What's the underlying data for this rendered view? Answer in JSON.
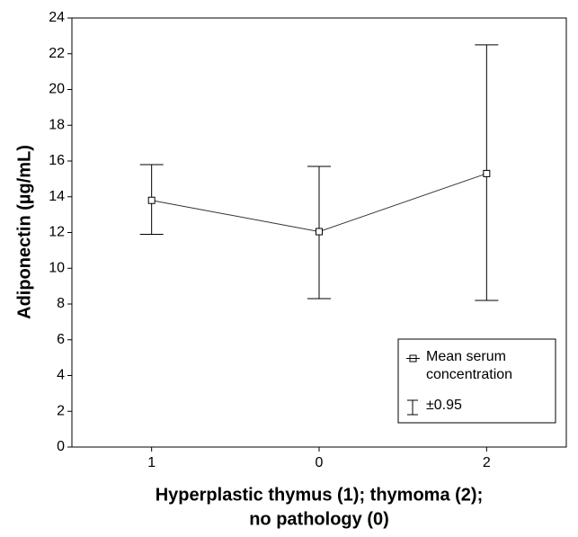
{
  "chart_data": {
    "type": "line",
    "x_label": [
      "Hyperplastic thymus (1); thymoma (2);",
      "no pathology (0)"
    ],
    "y_label": "Adiponectin (µg/mL)",
    "categories": [
      "1",
      "0",
      "2"
    ],
    "series": [
      {
        "name": "Mean serum concentration",
        "color": "#333333",
        "values": [
          13.8,
          12.05,
          15.3
        ],
        "lower": [
          11.9,
          8.3,
          8.2
        ],
        "upper": [
          15.8,
          15.7,
          22.5
        ]
      }
    ],
    "error_label": "±0.95",
    "ylim": [
      0,
      24
    ],
    "yticks": [
      0,
      2,
      4,
      6,
      8,
      10,
      12,
      14,
      16,
      18,
      20,
      22,
      24
    ],
    "legend": "lower right"
  }
}
